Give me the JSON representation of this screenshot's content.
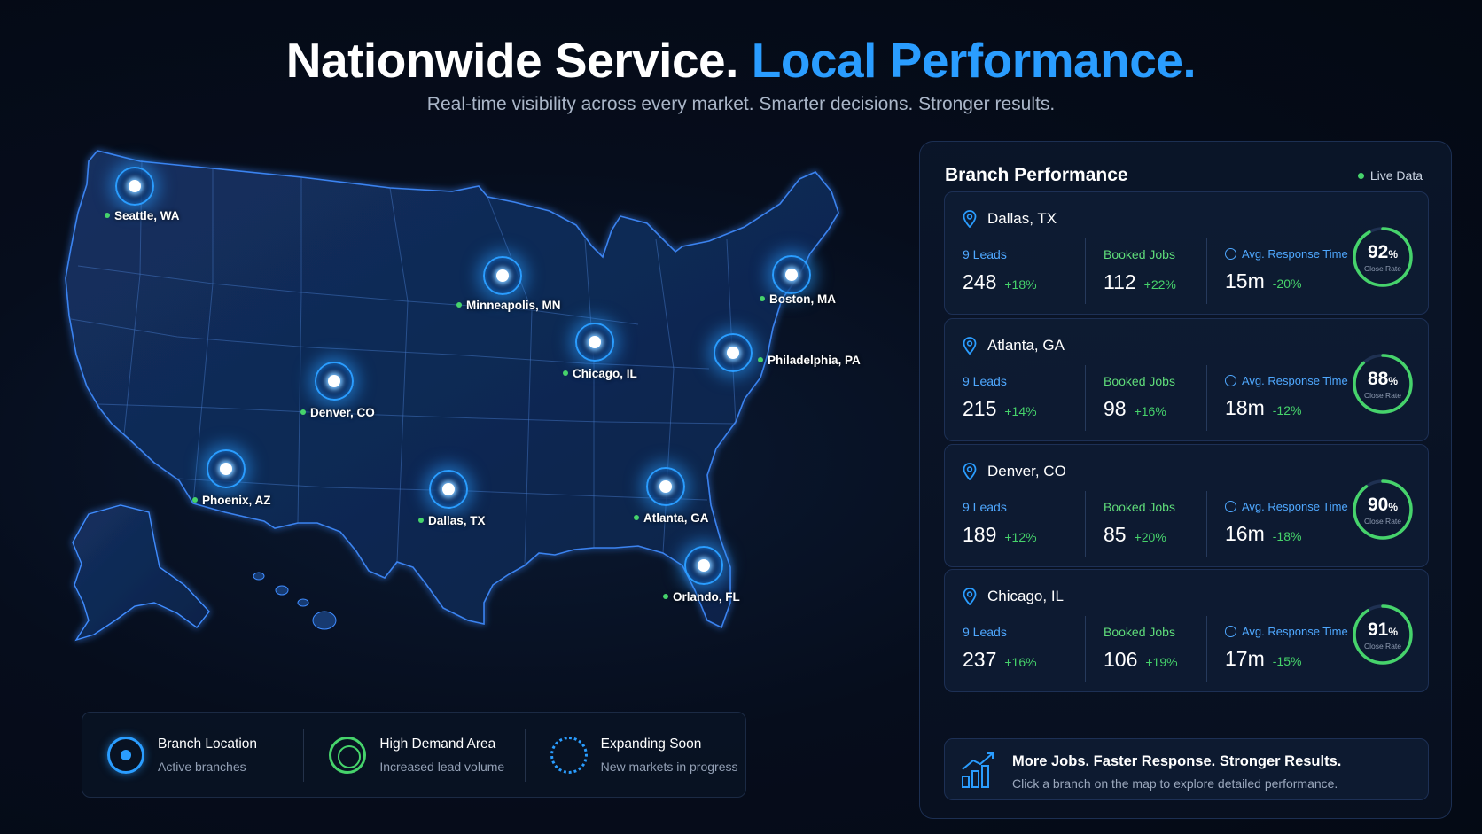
{
  "hero": {
    "title_main": "Nationwide Service.",
    "title_accent": "Local Performance.",
    "subtitle": "Real-time visibility across every market. Smarter decisions. Stronger results."
  },
  "map": {
    "markers": [
      {
        "label": "Seattle, WA"
      },
      {
        "label": "Minneapolis, MN"
      },
      {
        "label": "Boston, MA"
      },
      {
        "label": "Chicago, IL"
      },
      {
        "label": "Philadelphia, PA"
      },
      {
        "label": "Denver, CO"
      },
      {
        "label": "Phoenix, AZ"
      },
      {
        "label": "Dallas, TX"
      },
      {
        "label": "Atlanta, GA"
      },
      {
        "label": "Orlando, FL"
      }
    ]
  },
  "legend": {
    "items": [
      {
        "title": "Branch Location",
        "desc": "Active branches",
        "icon": "branch-location-icon"
      },
      {
        "title": "High Demand Area",
        "desc": "Increased lead volume",
        "icon": "high-demand-icon"
      },
      {
        "title": "Expanding Soon",
        "desc": "New markets in progress",
        "icon": "expanding-soon-icon"
      }
    ]
  },
  "panel": {
    "title": "Branch Performance",
    "live_label": "Live Data",
    "labels": {
      "leads": "9 Leads",
      "booked": "Booked Jobs",
      "response": "Avg. Response Time",
      "close_rate": "Close Rate"
    },
    "branches": [
      {
        "name": "Dallas, TX",
        "leads": "248",
        "leads_change": "+18%",
        "booked": "112",
        "booked_change": "+22%",
        "response": "15m",
        "response_change": "-20%",
        "close_rate": 92
      },
      {
        "name": "Atlanta, GA",
        "leads": "215",
        "leads_change": "+14%",
        "booked": "98",
        "booked_change": "+16%",
        "response": "18m",
        "response_change": "-12%",
        "close_rate": 88
      },
      {
        "name": "Denver, CO",
        "leads": "189",
        "leads_change": "+12%",
        "booked": "85",
        "booked_change": "+20%",
        "response": "16m",
        "response_change": "-18%",
        "close_rate": 90
      },
      {
        "name": "Chicago, IL",
        "leads": "237",
        "leads_change": "+16%",
        "booked": "106",
        "booked_change": "+19%",
        "response": "17m",
        "response_change": "-15%",
        "close_rate": 91
      }
    ],
    "summary": {
      "title": "More Jobs. Faster Response. Stronger Results.",
      "subtitle": "Click a branch on the map to explore detailed performance."
    }
  },
  "colors": {
    "accent": "#2a9dff",
    "positive": "#46d36b",
    "background": "#050b18"
  }
}
